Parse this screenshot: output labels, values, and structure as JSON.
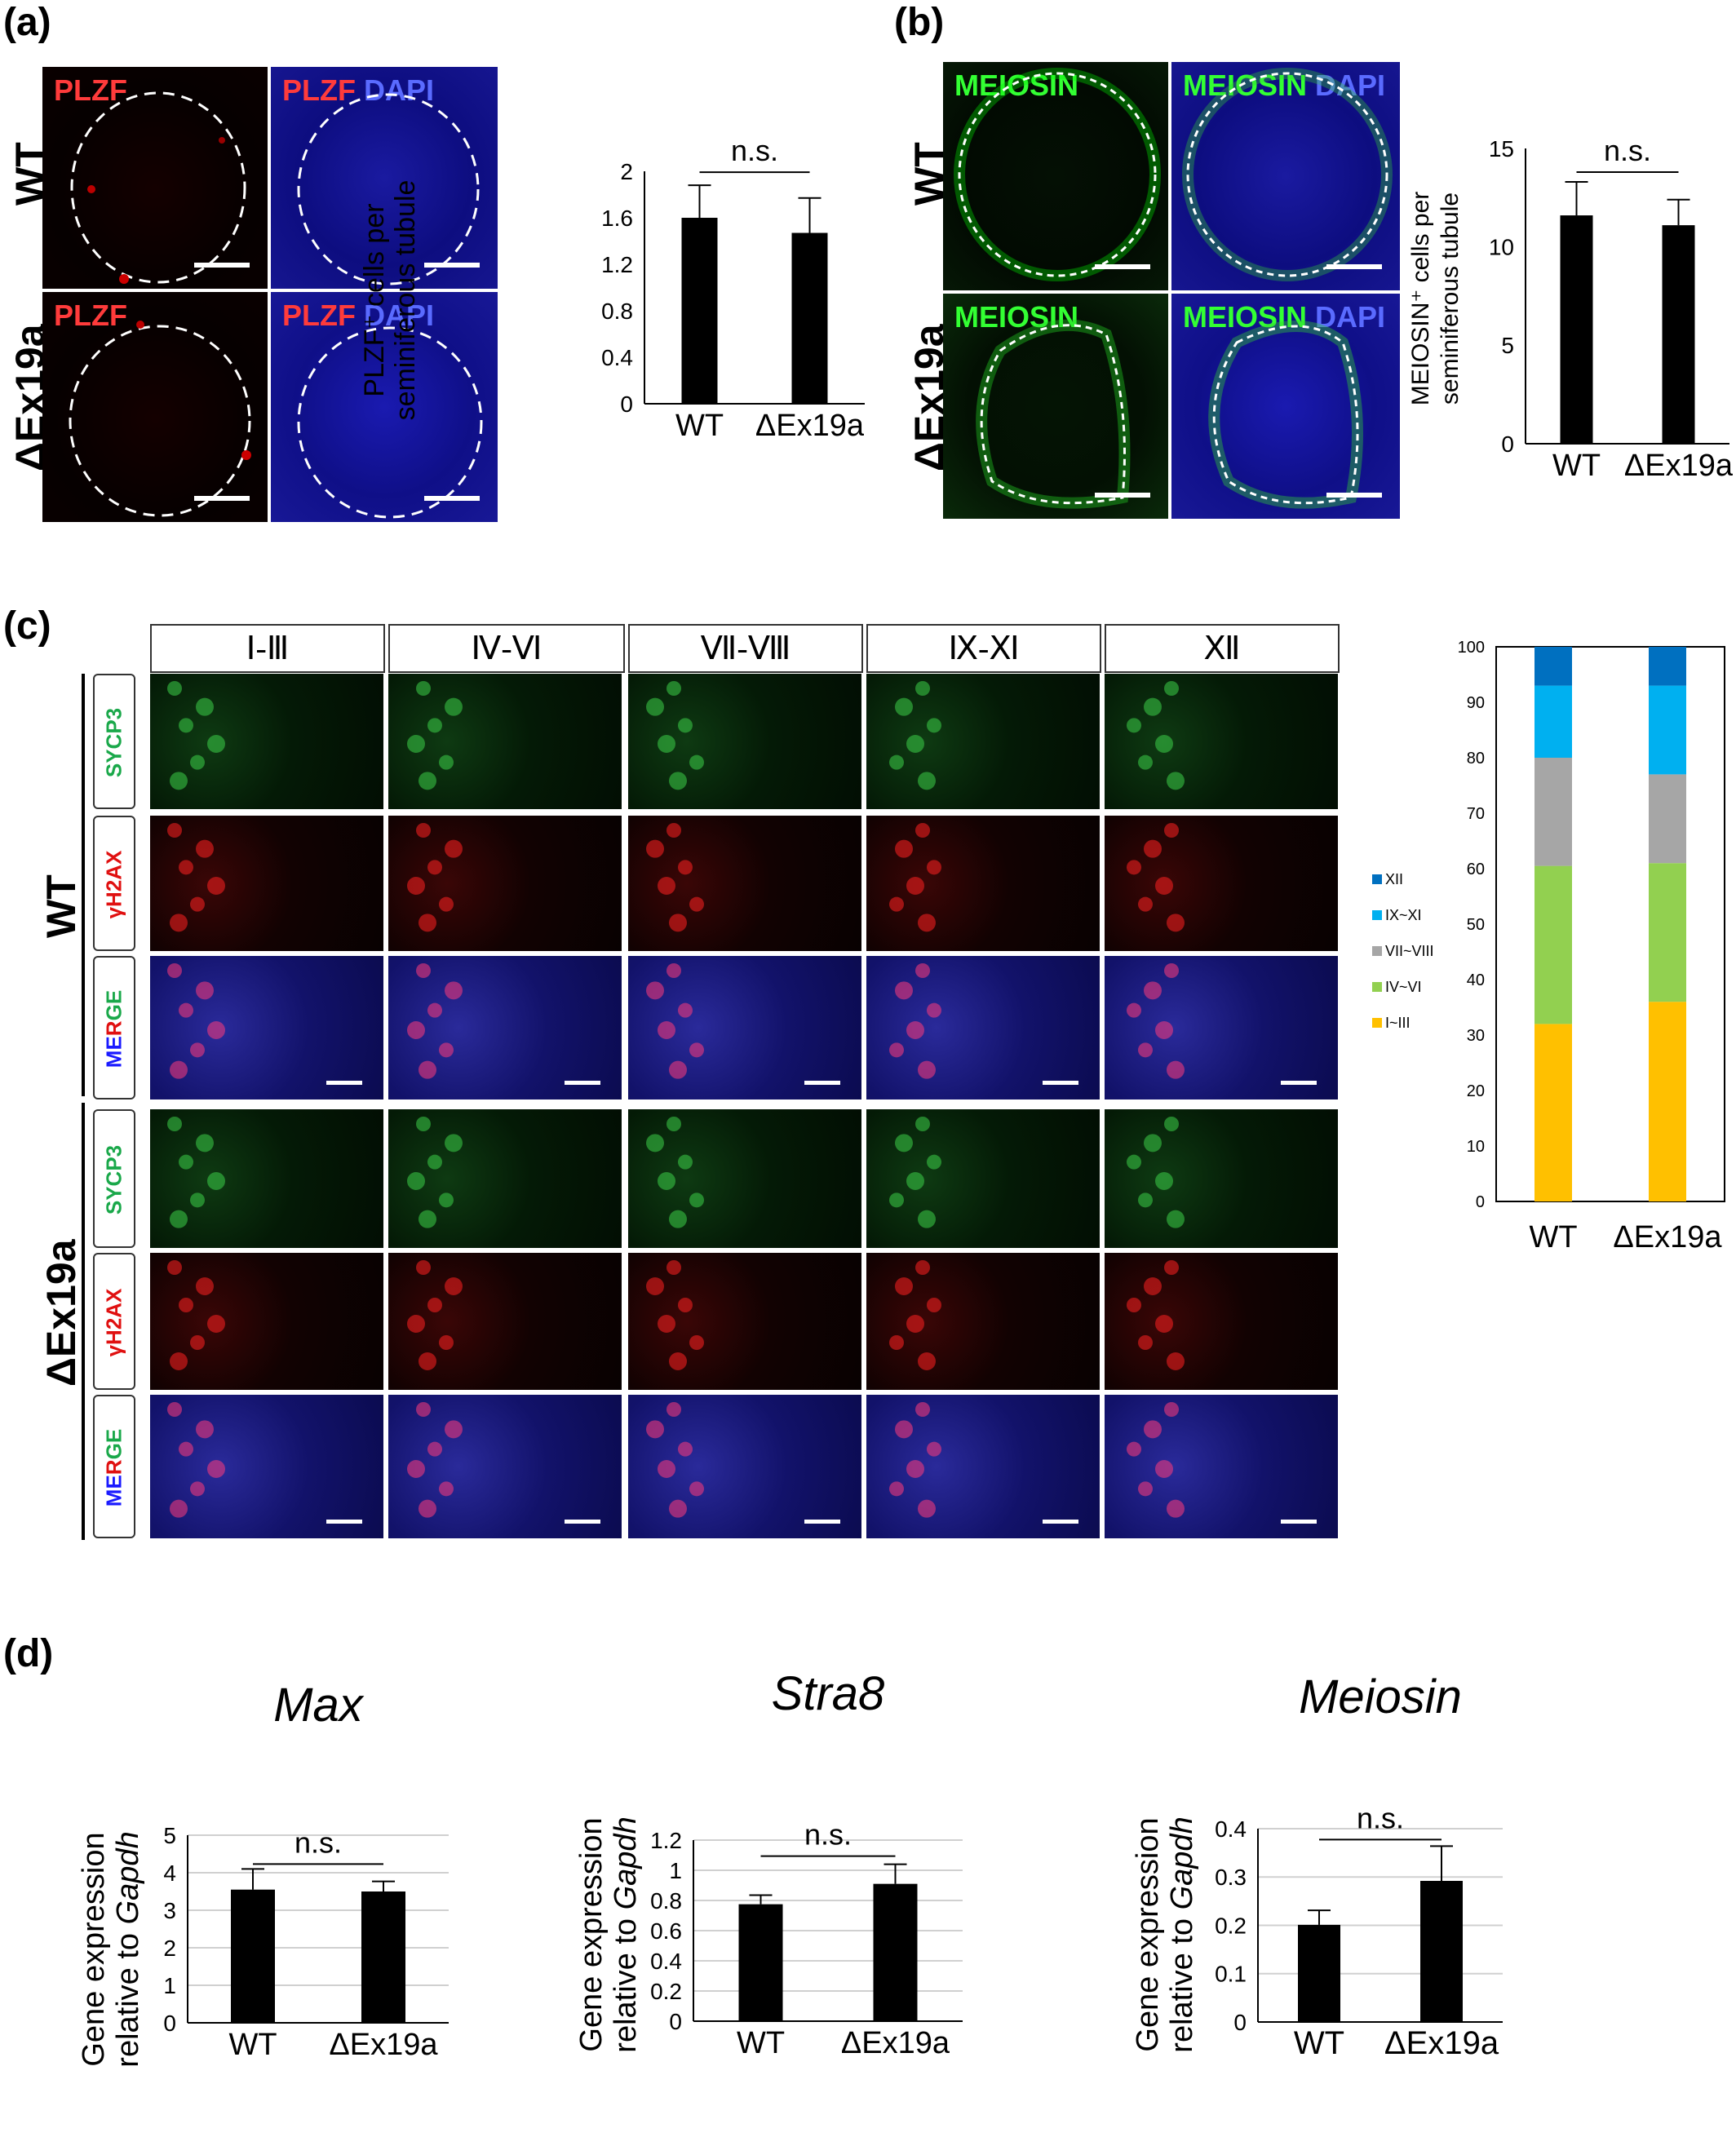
{
  "panels": {
    "a": {
      "label": "(a)",
      "row_labels": [
        "WT",
        "ΔEx19a"
      ],
      "image_labels": [
        {
          "text": "PLZF",
          "color": "#ff3b3b"
        },
        {
          "text": "PLZF",
          "color": "#ff3b3b",
          "extra": "DAPI",
          "extra_color": "#5a6bff"
        }
      ],
      "chart": {
        "ylabel_line1": "PLZF⁺ cells per",
        "ylabel_line2": "seminiferous tubule",
        "significance": "n.s."
      }
    },
    "b": {
      "label": "(b)",
      "row_labels": [
        "WT",
        "ΔEx19a"
      ],
      "image_labels": [
        {
          "text": "MEIOSIN",
          "color": "#33ff33"
        },
        {
          "text": "MEIOSIN",
          "color": "#33ff33",
          "extra": "DAPI",
          "extra_color": "#5a6bff"
        }
      ],
      "chart": {
        "ylabel_line1": "MEIOSIN⁺ cells per",
        "ylabel_line2": "seminiferous tubule",
        "significance": "n.s."
      }
    },
    "c": {
      "label": "(c)",
      "stages": [
        "Ⅰ-Ⅲ",
        "Ⅳ-Ⅵ",
        "Ⅶ-Ⅷ",
        "Ⅸ-Ⅺ",
        "Ⅻ"
      ],
      "row_labels": [
        "WT",
        "ΔEx19a"
      ],
      "channels": [
        {
          "text": "SYCP3",
          "color": "#1aa84a"
        },
        {
          "text": "γH2AX",
          "color": "#e01010"
        },
        {
          "text": "MERGE",
          "color": "multi"
        }
      ],
      "merge_letters": {
        "ME": "#1a1aff",
        "R": "#e01010",
        "GE": "#1aa84a"
      },
      "legend": [
        "XII",
        "IX~XI",
        "VII~VIII",
        "IV~VI",
        "I~III"
      ]
    },
    "d": {
      "label": "(d)",
      "ylabel_line1": "Gene expression",
      "ylabel_line2_prefix": "relative to ",
      "ylabel_line2_gene": "Gapdh",
      "significance": "n.s."
    }
  },
  "chart_data": [
    {
      "id": "a",
      "type": "bar",
      "categories": [
        "WT",
        "ΔEx19a"
      ],
      "values": [
        1.6,
        1.47
      ],
      "errors": [
        0.28,
        0.3
      ],
      "ylim": [
        0,
        2
      ],
      "yticks": [
        "0",
        "0.4",
        "0.8",
        "1.2",
        "1.6",
        "2"
      ],
      "ylabel": "PLZF⁺ cells per seminiferous tubule",
      "grid": false
    },
    {
      "id": "b",
      "type": "bar",
      "categories": [
        "WT",
        "ΔEx19a"
      ],
      "values": [
        11.6,
        11.1
      ],
      "errors": [
        1.7,
        1.3
      ],
      "ylim": [
        0,
        15
      ],
      "yticks": [
        "0",
        "5",
        "10",
        "15"
      ],
      "ylabel": "MEIOSIN⁺ cells per seminiferous tubule",
      "grid": false
    },
    {
      "id": "c",
      "type": "bar",
      "stacked": true,
      "categories": [
        "WT",
        "ΔEx19a"
      ],
      "series": [
        {
          "name": "I~III",
          "color": "#ffc000",
          "values": [
            32,
            36
          ]
        },
        {
          "name": "IV~VI",
          "color": "#92d050",
          "values": [
            28.5,
            25
          ]
        },
        {
          "name": "VII~VIII",
          "color": "#a6a6a6",
          "values": [
            19.5,
            16
          ]
        },
        {
          "name": "IX~XI",
          "color": "#00b0f0",
          "values": [
            13,
            16
          ]
        },
        {
          "name": "XII",
          "color": "#0070c0",
          "values": [
            7,
            7
          ]
        }
      ],
      "ylim": [
        0,
        100
      ],
      "yticks": [
        "0",
        "10",
        "20",
        "30",
        "40",
        "50",
        "60",
        "70",
        "80",
        "90",
        "100"
      ],
      "grid": false
    },
    {
      "id": "d1",
      "type": "bar",
      "title": "Max",
      "categories": [
        "WT",
        "ΔEx19a"
      ],
      "values": [
        3.55,
        3.5
      ],
      "errors": [
        0.55,
        0.27
      ],
      "ylim": [
        0,
        5
      ],
      "yticks": [
        "0",
        "1",
        "2",
        "3",
        "4",
        "5"
      ],
      "ylabel": "Gene expression relative to Gapdh",
      "grid": true
    },
    {
      "id": "d2",
      "type": "bar",
      "title": "Stra8",
      "categories": [
        "WT",
        "ΔEx19a"
      ],
      "values": [
        0.775,
        0.91
      ],
      "errors": [
        0.06,
        0.13
      ],
      "ylim": [
        0,
        1.2
      ],
      "yticks": [
        "0",
        "0.2",
        "0.4",
        "0.6",
        "0.8",
        "1",
        "1.2"
      ],
      "ylabel": "Gene expression relative to Gapdh",
      "grid": true
    },
    {
      "id": "d3",
      "type": "bar",
      "title": "Meiosin",
      "categories": [
        "WT",
        "ΔEx19a"
      ],
      "values": [
        0.201,
        0.292
      ],
      "errors": [
        0.03,
        0.072
      ],
      "ylim": [
        0,
        0.4
      ],
      "yticks": [
        "0",
        "0.1",
        "0.2",
        "0.3",
        "0.4"
      ],
      "ylabel": "Gene expression relative to Gapdh",
      "grid": true
    }
  ]
}
